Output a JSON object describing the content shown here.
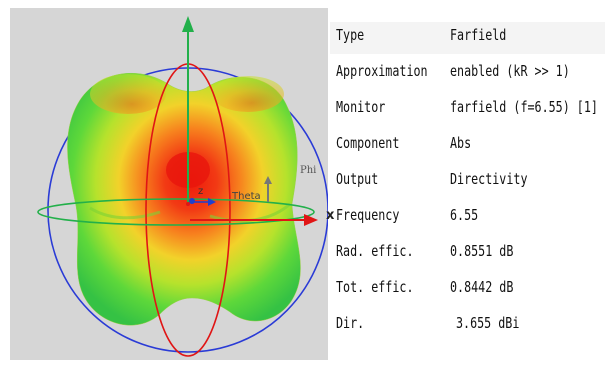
{
  "viewport": {
    "axis_labels": {
      "phi": "Phi",
      "theta": "Theta",
      "x": "x",
      "z": "z"
    },
    "colors": {
      "background": "#d6d6d6",
      "x_axis": "#e01515",
      "z_axis": "#22b04a",
      "ring_blue": "#2a3bd6",
      "ring_red": "#e01515",
      "ring_green": "#22b04a"
    }
  },
  "properties": {
    "rows": [
      {
        "key": "Type",
        "value": "Farfield"
      },
      {
        "key": "Approximation",
        "value": "enabled (kR >> 1)"
      },
      {
        "key": "Monitor",
        "value": "farfield (f=6.55) [1]"
      },
      {
        "key": "Component",
        "value": "Abs"
      },
      {
        "key": "Output",
        "value": "Directivity"
      },
      {
        "key": "Frequency",
        "value": "6.55"
      },
      {
        "key": "Rad. effic.",
        "value": "0.8551 dB"
      },
      {
        "key": "Tot. effic.",
        "value": "0.8442 dB"
      },
      {
        "key": "Dir.",
        "value": "3.655 dBi"
      }
    ]
  }
}
